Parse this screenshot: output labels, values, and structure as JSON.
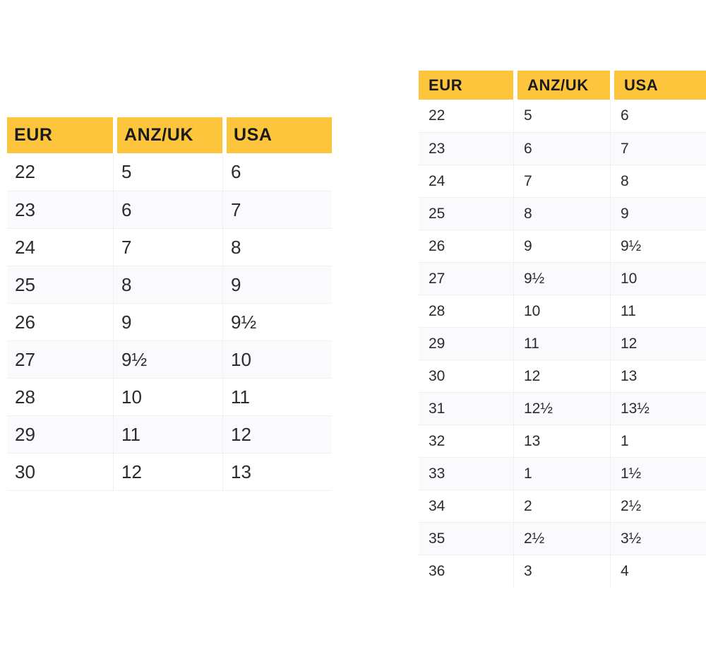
{
  "colors": {
    "header_bg": "#FCC53C",
    "header_text": "#1B1B1E",
    "body_text": "#2B2B2F",
    "row_alt_bg": "#FAF9FB",
    "grid_line": "#F0EFF1",
    "page_bg": "#FFFFFF"
  },
  "tables": [
    {
      "name": "size-table-left",
      "headers": [
        "EUR",
        "ANZ/UK",
        "USA"
      ],
      "rows": [
        [
          "22",
          "5",
          "6"
        ],
        [
          "23",
          "6",
          "7"
        ],
        [
          "24",
          "7",
          "8"
        ],
        [
          "25",
          "8",
          "9"
        ],
        [
          "26",
          "9",
          "9½"
        ],
        [
          "27",
          "9½",
          "10"
        ],
        [
          "28",
          "10",
          "11"
        ],
        [
          "29",
          "11",
          "12"
        ],
        [
          "30",
          "12",
          "13"
        ]
      ]
    },
    {
      "name": "size-table-right",
      "headers": [
        "EUR",
        "ANZ/UK",
        "USA"
      ],
      "rows": [
        [
          "22",
          "5",
          "6"
        ],
        [
          "23",
          "6",
          "7"
        ],
        [
          "24",
          "7",
          "8"
        ],
        [
          "25",
          "8",
          "9"
        ],
        [
          "26",
          "9",
          "9½"
        ],
        [
          "27",
          "9½",
          "10"
        ],
        [
          "28",
          "10",
          "11"
        ],
        [
          "29",
          "11",
          "12"
        ],
        [
          "30",
          "12",
          "13"
        ],
        [
          "31",
          "12½",
          "13½"
        ],
        [
          "32",
          "13",
          "1"
        ],
        [
          "33",
          "1",
          "1½"
        ],
        [
          "34",
          "2",
          "2½"
        ],
        [
          "35",
          "2½",
          "3½"
        ],
        [
          "36",
          "3",
          "4"
        ]
      ]
    }
  ],
  "chart_data": [
    {
      "type": "table",
      "title": "",
      "columns": [
        "EUR",
        "ANZ/UK",
        "USA"
      ],
      "rows": [
        [
          "22",
          "5",
          "6"
        ],
        [
          "23",
          "6",
          "7"
        ],
        [
          "24",
          "7",
          "8"
        ],
        [
          "25",
          "8",
          "9"
        ],
        [
          "26",
          "9",
          "9½"
        ],
        [
          "27",
          "9½",
          "10"
        ],
        [
          "28",
          "10",
          "11"
        ],
        [
          "29",
          "11",
          "12"
        ],
        [
          "30",
          "12",
          "13"
        ]
      ]
    },
    {
      "type": "table",
      "title": "",
      "columns": [
        "EUR",
        "ANZ/UK",
        "USA"
      ],
      "rows": [
        [
          "22",
          "5",
          "6"
        ],
        [
          "23",
          "6",
          "7"
        ],
        [
          "24",
          "7",
          "8"
        ],
        [
          "25",
          "8",
          "9"
        ],
        [
          "26",
          "9",
          "9½"
        ],
        [
          "27",
          "9½",
          "10"
        ],
        [
          "28",
          "10",
          "11"
        ],
        [
          "29",
          "11",
          "12"
        ],
        [
          "30",
          "12",
          "13"
        ],
        [
          "31",
          "12½",
          "13½"
        ],
        [
          "32",
          "13",
          "1"
        ],
        [
          "33",
          "1",
          "1½"
        ],
        [
          "34",
          "2",
          "2½"
        ],
        [
          "35",
          "2½",
          "3½"
        ],
        [
          "36",
          "3",
          "4"
        ]
      ]
    }
  ]
}
